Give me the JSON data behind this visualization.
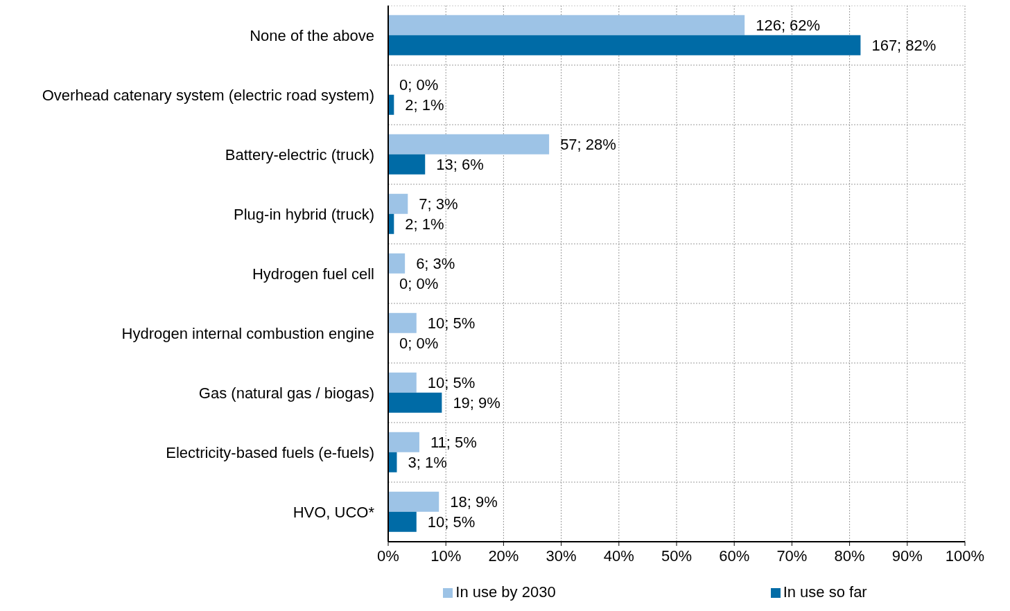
{
  "chart_data": {
    "type": "bar",
    "orientation": "horizontal",
    "categories": [
      "None of the above",
      "Overhead catenary system (electric road system)",
      "Battery-electric (truck)",
      "Plug-in hybrid (truck)",
      "Hydrogen fuel cell",
      "Hydrogen internal combustion engine",
      "Gas (natural gas / biogas)",
      "Electricity-based fuels (e-fuels)",
      "HVO, UCO*"
    ],
    "series": [
      {
        "name": "In use by 2030",
        "color": "#9dc3e6",
        "values": [
          61.8,
          0,
          27.9,
          3.4,
          2.9,
          4.9,
          4.9,
          5.4,
          8.8
        ],
        "value_labels": [
          "126; 62%",
          "0; 0%",
          "57; 28%",
          "7; 3%",
          "6; 3%",
          "10; 5%",
          "10; 5%",
          "11; 5%",
          "18; 9%"
        ]
      },
      {
        "name": "In use so far",
        "color": "#006ba6",
        "values": [
          81.9,
          1.0,
          6.4,
          1.0,
          0,
          0,
          9.3,
          1.5,
          4.9
        ],
        "value_labels": [
          "167; 82%",
          "2; 1%",
          "13; 6%",
          "2; 1%",
          "0; 0%",
          "0; 0%",
          "19; 9%",
          "3; 1%",
          "10; 5%"
        ]
      }
    ],
    "xlim": [
      0,
      100
    ],
    "xticks": [
      {
        "value": 0,
        "label": "0%"
      },
      {
        "value": 10,
        "label": "10%"
      },
      {
        "value": 20,
        "label": "20%"
      },
      {
        "value": 30,
        "label": "30%"
      },
      {
        "value": 40,
        "label": "40%"
      },
      {
        "value": 50,
        "label": "50%"
      },
      {
        "value": 60,
        "label": "60%"
      },
      {
        "value": 70,
        "label": "70%"
      },
      {
        "value": 80,
        "label": "80%"
      },
      {
        "value": 90,
        "label": "90%"
      },
      {
        "value": 100,
        "label": "100%"
      }
    ],
    "grid": true,
    "legend": "bottom"
  }
}
